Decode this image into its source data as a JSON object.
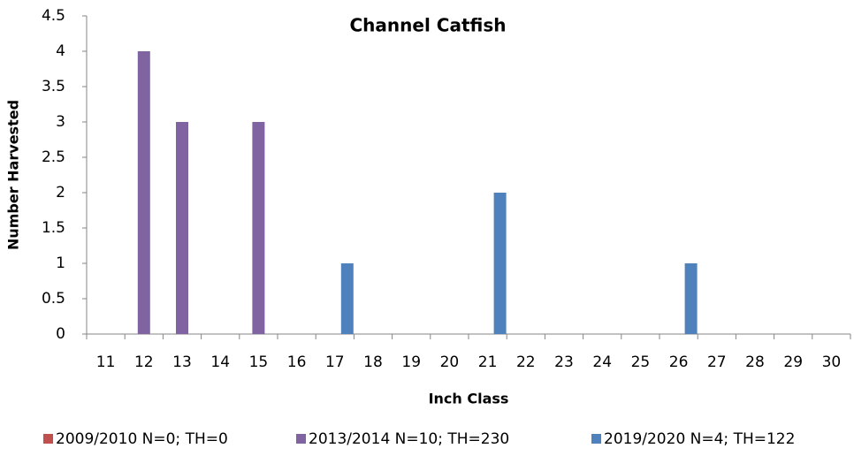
{
  "chart_data": {
    "type": "bar",
    "title": "Channel Catfish",
    "x_label": "Inch Class",
    "y_label": "Number Harvested",
    "categories": [
      "11",
      "12",
      "13",
      "14",
      "15",
      "16",
      "17",
      "18",
      "19",
      "20",
      "21",
      "22",
      "23",
      "24",
      "25",
      "26",
      "27",
      "28",
      "29",
      "30"
    ],
    "series": [
      {
        "name": "2009/2010 N=0; TH=0",
        "color": "#c0504d",
        "values": [
          0,
          0,
          0,
          0,
          0,
          0,
          0,
          0,
          0,
          0,
          0,
          0,
          0,
          0,
          0,
          0,
          0,
          0,
          0,
          0
        ]
      },
      {
        "name": "2013/2014 N=10; TH=230",
        "color": "#8064a2",
        "values": [
          0,
          4,
          3,
          0,
          3,
          0,
          0,
          0,
          0,
          0,
          0,
          0,
          0,
          0,
          0,
          0,
          0,
          0,
          0,
          0
        ]
      },
      {
        "name": "2019/2020 N=4; TH=122",
        "color": "#4f81bd",
        "values": [
          0,
          0,
          0,
          0,
          0,
          0,
          1,
          0,
          0,
          0,
          2,
          0,
          0,
          0,
          0,
          1,
          0,
          0,
          0,
          0
        ]
      }
    ],
    "ylim": [
      0,
      4.5
    ],
    "yticks": [
      0,
      0.5,
      1,
      1.5,
      2,
      2.5,
      3,
      3.5,
      4,
      4.5
    ],
    "grid": false,
    "legend": "bottom"
  }
}
